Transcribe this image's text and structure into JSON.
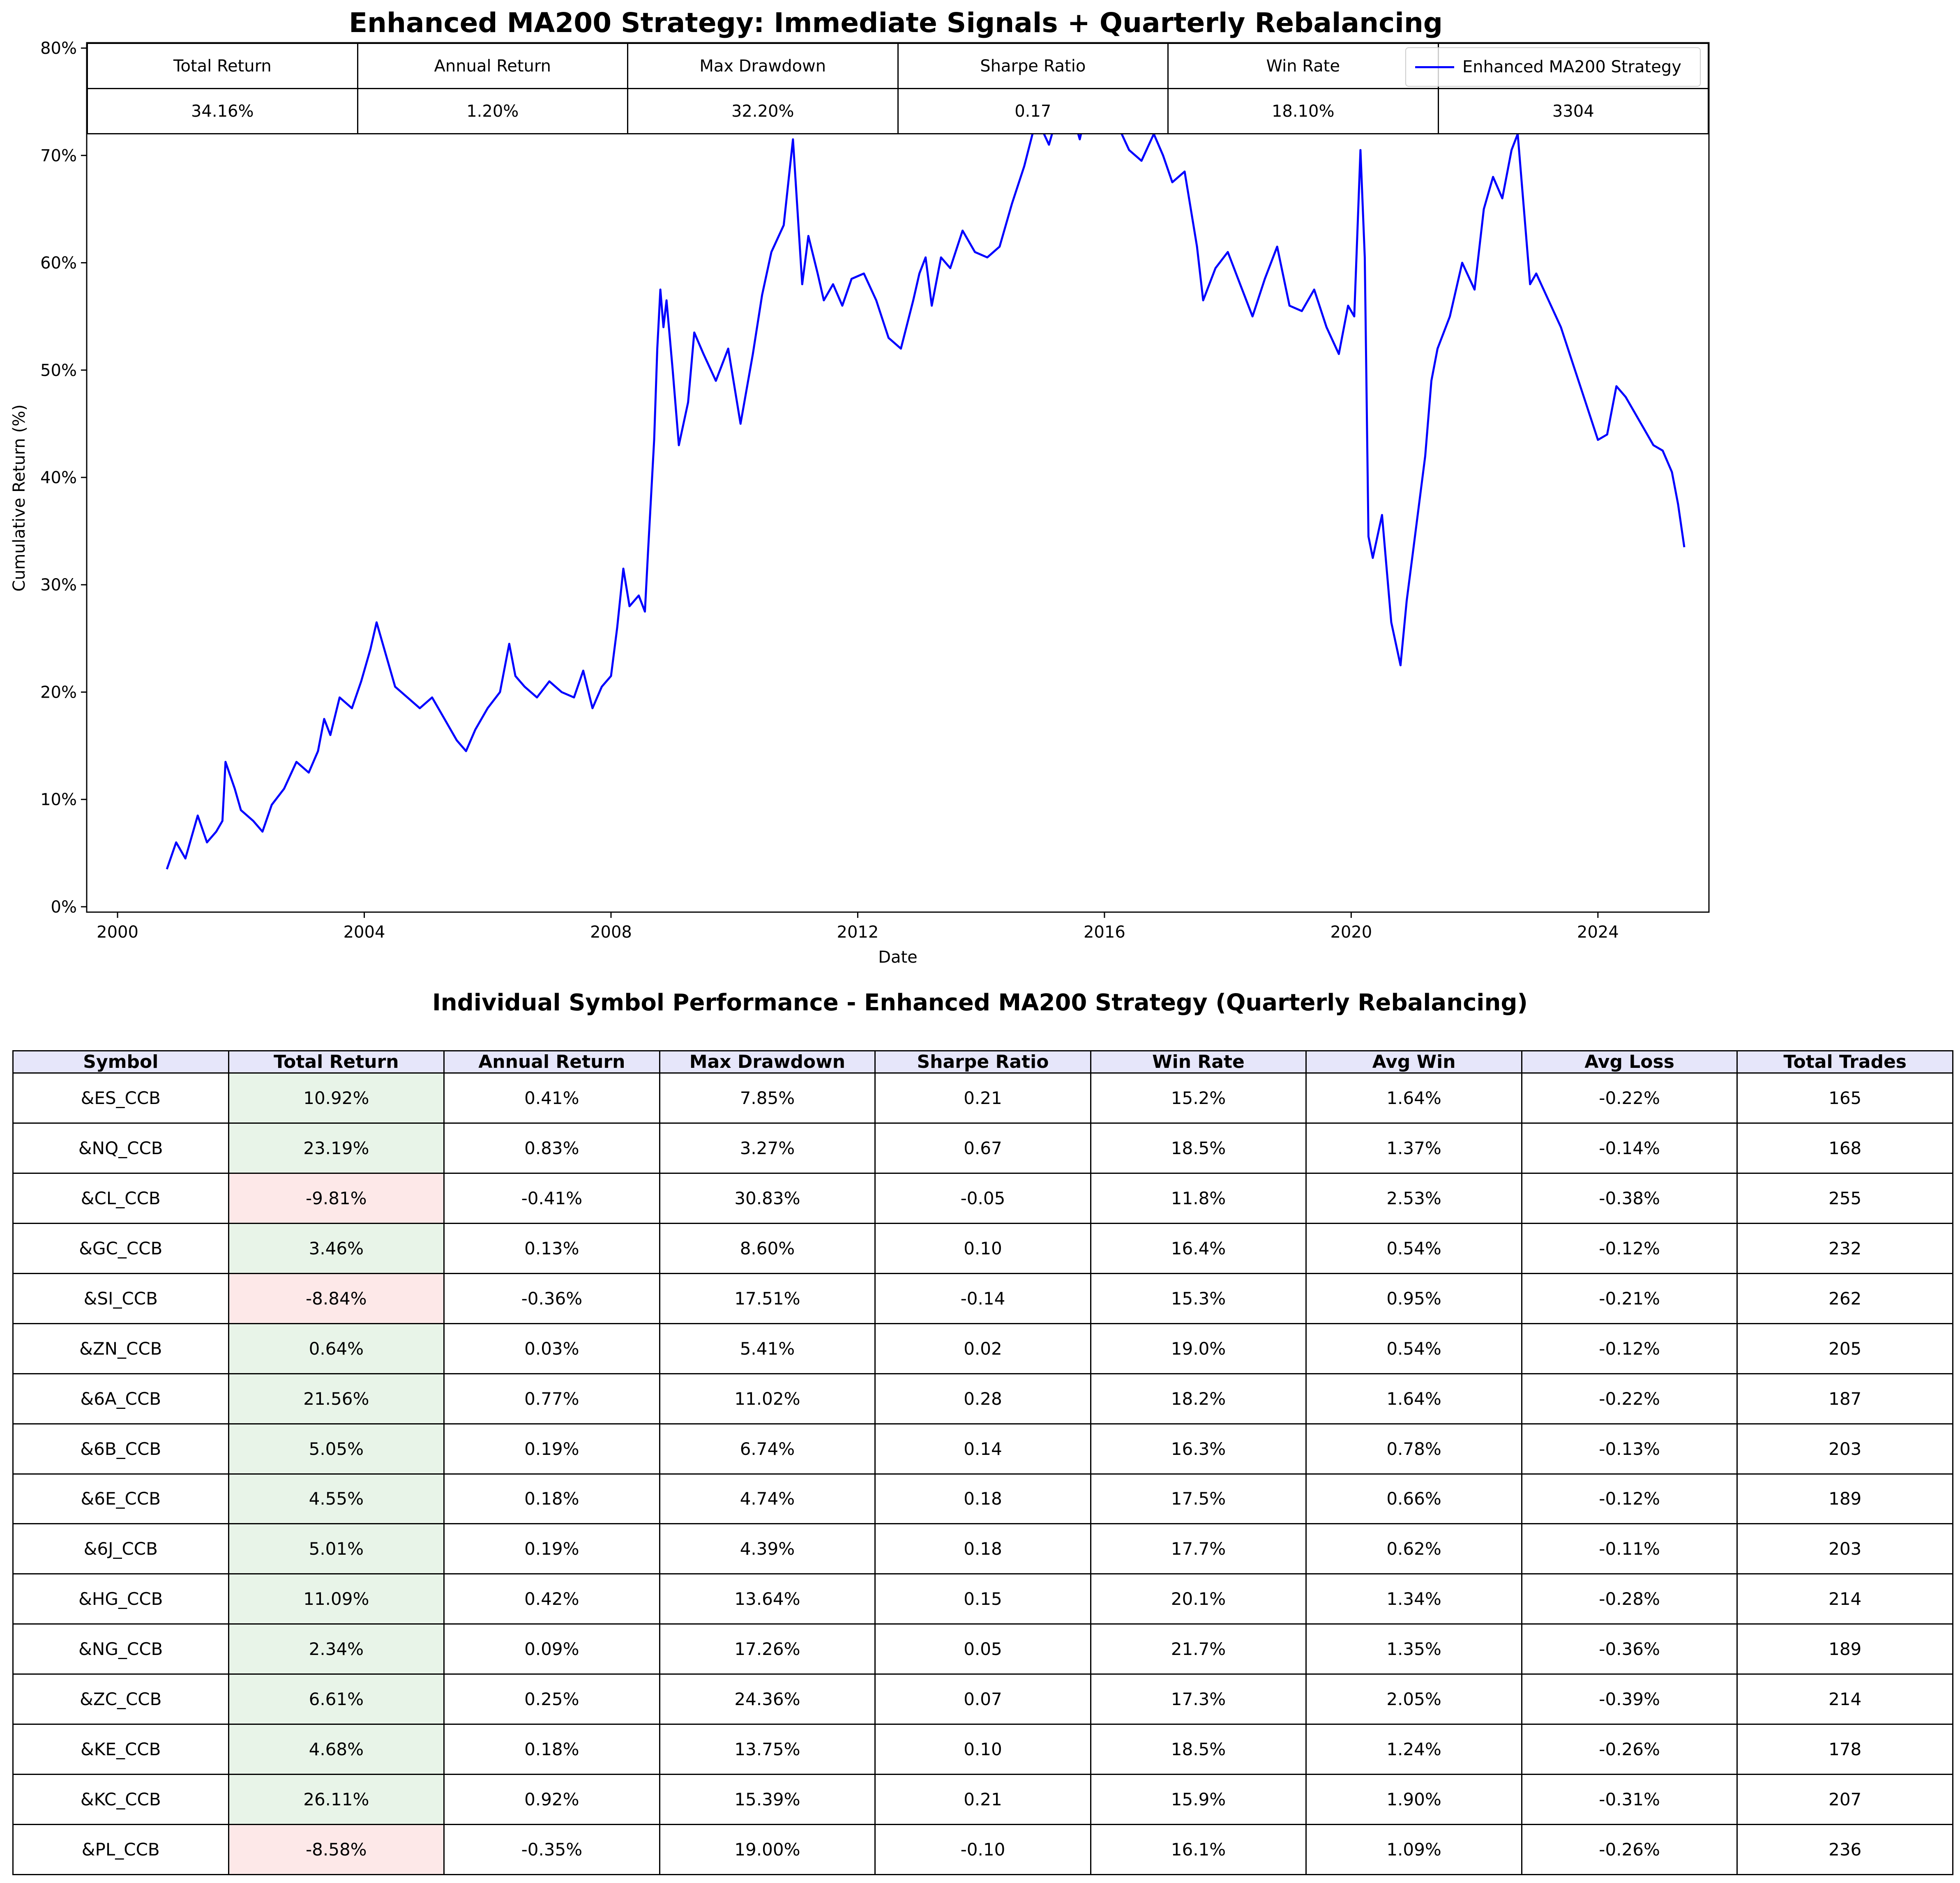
{
  "chart_data": {
    "type": "line",
    "title": "Enhanced MA200 Strategy: Immediate Signals + Quarterly Rebalancing",
    "xlabel": "Date",
    "ylabel": "Cumulative Return (%)",
    "xlim": [
      1999.5,
      2025.8
    ],
    "ylim": [
      -0.5,
      80.5
    ],
    "x_ticks": [
      2000,
      2004,
      2008,
      2012,
      2016,
      2020,
      2024
    ],
    "y_ticks": [
      0,
      10,
      20,
      30,
      40,
      50,
      60,
      70,
      80
    ],
    "y_tick_suffix": "%",
    "grid": false,
    "legend": "top-right",
    "series": [
      {
        "name": "Enhanced MA200 Strategy",
        "color": "#0000ff",
        "x": [
          2000.8,
          2000.95,
          2001.1,
          2001.2,
          2001.3,
          2001.45,
          2001.6,
          2001.7,
          2001.75,
          2001.9,
          2002.0,
          2002.2,
          2002.35,
          2002.5,
          2002.7,
          2002.9,
          2003.1,
          2003.25,
          2003.35,
          2003.45,
          2003.6,
          2003.8,
          2003.95,
          2004.1,
          2004.2,
          2004.3,
          2004.5,
          2004.7,
          2004.9,
          2005.1,
          2005.3,
          2005.5,
          2005.65,
          2005.8,
          2006.0,
          2006.2,
          2006.35,
          2006.45,
          2006.6,
          2006.8,
          2007.0,
          2007.2,
          2007.4,
          2007.55,
          2007.7,
          2007.85,
          2008.0,
          2008.1,
          2008.2,
          2008.3,
          2008.45,
          2008.55,
          2008.6,
          2008.7,
          2008.75,
          2008.8,
          2008.85,
          2008.9,
          2009.0,
          2009.1,
          2009.25,
          2009.35,
          2009.5,
          2009.7,
          2009.9,
          2010.1,
          2010.3,
          2010.45,
          2010.6,
          2010.8,
          2010.95,
          2011.1,
          2011.2,
          2011.35,
          2011.45,
          2011.6,
          2011.75,
          2011.9,
          2012.1,
          2012.3,
          2012.5,
          2012.7,
          2012.9,
          2013.0,
          2013.1,
          2013.2,
          2013.35,
          2013.5,
          2013.7,
          2013.9,
          2014.1,
          2014.3,
          2014.5,
          2014.7,
          2014.9,
          2015.1,
          2015.3,
          2015.5,
          2015.6,
          2015.8,
          2016.0,
          2016.05,
          2016.2,
          2016.4,
          2016.6,
          2016.8,
          2016.95,
          2017.1,
          2017.3,
          2017.5,
          2017.6,
          2017.8,
          2018.0,
          2018.2,
          2018.4,
          2018.6,
          2018.8,
          2019.0,
          2019.2,
          2019.4,
          2019.6,
          2019.8,
          2019.95,
          2020.05,
          2020.15,
          2020.22,
          2020.28,
          2020.35,
          2020.5,
          2020.65,
          2020.8,
          2020.9,
          2021.0,
          2021.1,
          2021.2,
          2021.3,
          2021.4,
          2021.6,
          2021.8,
          2022.0,
          2022.15,
          2022.3,
          2022.45,
          2022.6,
          2022.7,
          2022.8,
          2022.9,
          2023.0,
          2023.2,
          2023.4,
          2023.6,
          2023.8,
          2024.0,
          2024.15,
          2024.3,
          2024.45,
          2024.6,
          2024.75,
          2024.9,
          2025.05,
          2025.2,
          2025.3,
          2025.4
        ],
        "y": [
          3.5,
          6.0,
          4.5,
          6.5,
          8.5,
          6.0,
          7.0,
          8.0,
          13.5,
          11.0,
          9.0,
          8.0,
          7.0,
          9.5,
          11.0,
          13.5,
          12.5,
          14.5,
          17.5,
          16.0,
          19.5,
          18.5,
          21.0,
          24.0,
          26.5,
          24.5,
          20.5,
          19.5,
          18.5,
          19.5,
          17.5,
          15.5,
          14.5,
          16.5,
          18.5,
          20.0,
          24.5,
          21.5,
          20.5,
          19.5,
          21.0,
          20.0,
          19.5,
          22.0,
          18.5,
          20.5,
          21.5,
          26.0,
          31.5,
          28.0,
          29.0,
          27.5,
          33.0,
          43.5,
          52.0,
          57.5,
          54.0,
          56.5,
          50.0,
          43.0,
          47.0,
          53.5,
          51.5,
          49.0,
          52.0,
          45.0,
          51.5,
          57.0,
          61.0,
          63.5,
          71.5,
          58.0,
          62.5,
          59.0,
          56.5,
          58.0,
          56.0,
          58.5,
          59.0,
          56.5,
          53.0,
          52.0,
          56.5,
          59.0,
          60.5,
          56.0,
          60.5,
          59.5,
          63.0,
          61.0,
          60.5,
          61.5,
          65.5,
          69.0,
          73.5,
          71.0,
          75.0,
          73.5,
          71.5,
          76.5,
          80.0,
          78.5,
          73.0,
          70.5,
          69.5,
          72.0,
          70.0,
          67.5,
          68.5,
          61.5,
          56.5,
          59.5,
          61.0,
          58.0,
          55.0,
          58.5,
          61.5,
          56.0,
          55.5,
          57.5,
          54.0,
          51.5,
          56.0,
          55.0,
          70.5,
          60.5,
          34.5,
          32.5,
          36.5,
          26.5,
          22.5,
          28.5,
          33.0,
          37.5,
          42.0,
          49.0,
          52.0,
          55.0,
          60.0,
          57.5,
          65.0,
          68.0,
          66.0,
          70.5,
          72.0,
          65.0,
          58.0,
          59.0,
          56.5,
          54.0,
          50.5,
          47.0,
          43.5,
          44.0,
          48.5,
          47.5,
          46.0,
          44.5,
          43.0,
          42.5,
          40.5,
          37.5,
          33.5
        ]
      }
    ]
  },
  "summary_table": {
    "headers": [
      "Total Return",
      "Annual Return",
      "Max Drawdown",
      "Sharpe Ratio",
      "Win Rate",
      ""
    ],
    "values": [
      "34.16%",
      "1.20%",
      "32.20%",
      "0.17",
      "18.10%",
      "3304"
    ]
  },
  "symbol_table": {
    "title": "Individual Symbol Performance - Enhanced MA200 Strategy (Quarterly Rebalancing)",
    "headers": [
      "Symbol",
      "Total Return",
      "Annual Return",
      "Max Drawdown",
      "Sharpe Ratio",
      "Win Rate",
      "Avg Win",
      "Avg Loss",
      "Total Trades"
    ],
    "positive_bg": "#e8f4e8",
    "negative_bg": "#fde8e8",
    "header_bg": "#e6e6fa",
    "rows": [
      [
        "&ES_CCB",
        "10.92%",
        "0.41%",
        "7.85%",
        "0.21",
        "15.2%",
        "1.64%",
        "-0.22%",
        "165"
      ],
      [
        "&NQ_CCB",
        "23.19%",
        "0.83%",
        "3.27%",
        "0.67",
        "18.5%",
        "1.37%",
        "-0.14%",
        "168"
      ],
      [
        "&CL_CCB",
        "-9.81%",
        "-0.41%",
        "30.83%",
        "-0.05",
        "11.8%",
        "2.53%",
        "-0.38%",
        "255"
      ],
      [
        "&GC_CCB",
        "3.46%",
        "0.13%",
        "8.60%",
        "0.10",
        "16.4%",
        "0.54%",
        "-0.12%",
        "232"
      ],
      [
        "&SI_CCB",
        "-8.84%",
        "-0.36%",
        "17.51%",
        "-0.14",
        "15.3%",
        "0.95%",
        "-0.21%",
        "262"
      ],
      [
        "&ZN_CCB",
        "0.64%",
        "0.03%",
        "5.41%",
        "0.02",
        "19.0%",
        "0.54%",
        "-0.12%",
        "205"
      ],
      [
        "&6A_CCB",
        "21.56%",
        "0.77%",
        "11.02%",
        "0.28",
        "18.2%",
        "1.64%",
        "-0.22%",
        "187"
      ],
      [
        "&6B_CCB",
        "5.05%",
        "0.19%",
        "6.74%",
        "0.14",
        "16.3%",
        "0.78%",
        "-0.13%",
        "203"
      ],
      [
        "&6E_CCB",
        "4.55%",
        "0.18%",
        "4.74%",
        "0.18",
        "17.5%",
        "0.66%",
        "-0.12%",
        "189"
      ],
      [
        "&6J_CCB",
        "5.01%",
        "0.19%",
        "4.39%",
        "0.18",
        "17.7%",
        "0.62%",
        "-0.11%",
        "203"
      ],
      [
        "&HG_CCB",
        "11.09%",
        "0.42%",
        "13.64%",
        "0.15",
        "20.1%",
        "1.34%",
        "-0.28%",
        "214"
      ],
      [
        "&NG_CCB",
        "2.34%",
        "0.09%",
        "17.26%",
        "0.05",
        "21.7%",
        "1.35%",
        "-0.36%",
        "189"
      ],
      [
        "&ZC_CCB",
        "6.61%",
        "0.25%",
        "24.36%",
        "0.07",
        "17.3%",
        "2.05%",
        "-0.39%",
        "214"
      ],
      [
        "&KE_CCB",
        "4.68%",
        "0.18%",
        "13.75%",
        "0.10",
        "18.5%",
        "1.24%",
        "-0.26%",
        "178"
      ],
      [
        "&KC_CCB",
        "26.11%",
        "0.92%",
        "15.39%",
        "0.21",
        "15.9%",
        "1.90%",
        "-0.31%",
        "207"
      ],
      [
        "&PL_CCB",
        "-8.58%",
        "-0.35%",
        "19.00%",
        "-0.10",
        "16.1%",
        "1.09%",
        "-0.26%",
        "236"
      ]
    ]
  }
}
